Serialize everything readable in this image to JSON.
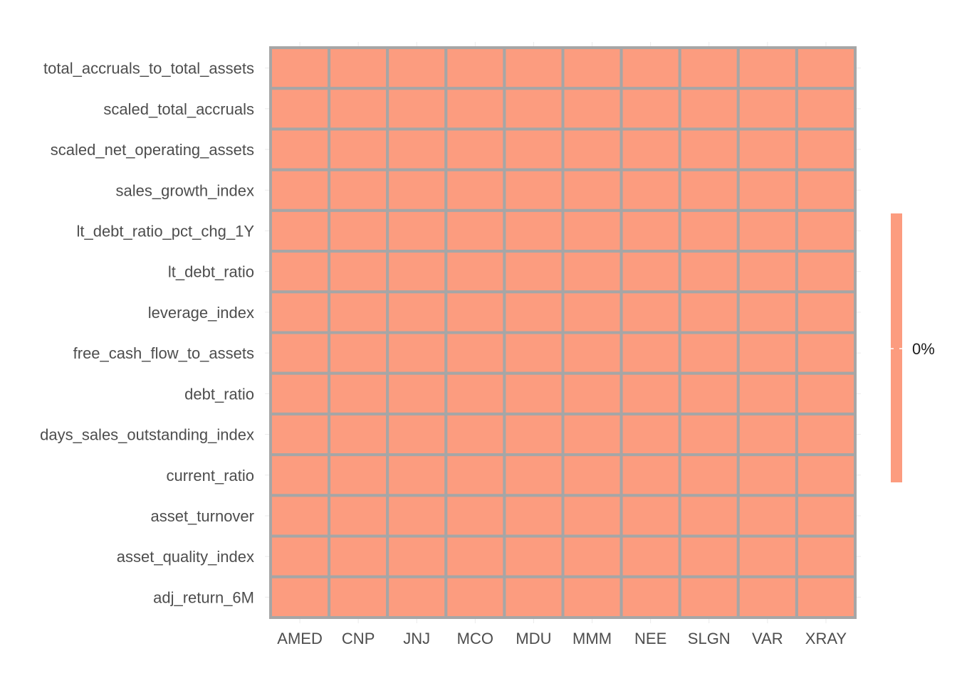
{
  "chart_data": {
    "type": "heatmap",
    "title": "",
    "xlabel": "",
    "ylabel": "",
    "x_categories": [
      "AMED",
      "CNP",
      "JNJ",
      "MCO",
      "MDU",
      "MMM",
      "NEE",
      "SLGN",
      "VAR",
      "XRAY"
    ],
    "y_categories": [
      "total_accruals_to_total_assets",
      "scaled_total_accruals",
      "scaled_net_operating_assets",
      "sales_growth_index",
      "lt_debt_ratio_pct_chg_1Y",
      "lt_debt_ratio",
      "leverage_index",
      "free_cash_flow_to_assets",
      "debt_ratio",
      "days_sales_outstanding_index",
      "current_ratio",
      "asset_turnover",
      "asset_quality_index",
      "adj_return_6M"
    ],
    "values": [
      [
        0,
        0,
        0,
        0,
        0,
        0,
        0,
        0,
        0,
        0
      ],
      [
        0,
        0,
        0,
        0,
        0,
        0,
        0,
        0,
        0,
        0
      ],
      [
        0,
        0,
        0,
        0,
        0,
        0,
        0,
        0,
        0,
        0
      ],
      [
        0,
        0,
        0,
        0,
        0,
        0,
        0,
        0,
        0,
        0
      ],
      [
        0,
        0,
        0,
        0,
        0,
        0,
        0,
        0,
        0,
        0
      ],
      [
        0,
        0,
        0,
        0,
        0,
        0,
        0,
        0,
        0,
        0
      ],
      [
        0,
        0,
        0,
        0,
        0,
        0,
        0,
        0,
        0,
        0
      ],
      [
        0,
        0,
        0,
        0,
        0,
        0,
        0,
        0,
        0,
        0
      ],
      [
        0,
        0,
        0,
        0,
        0,
        0,
        0,
        0,
        0,
        0
      ],
      [
        0,
        0,
        0,
        0,
        0,
        0,
        0,
        0,
        0,
        0
      ],
      [
        0,
        0,
        0,
        0,
        0,
        0,
        0,
        0,
        0,
        0
      ],
      [
        0,
        0,
        0,
        0,
        0,
        0,
        0,
        0,
        0,
        0
      ],
      [
        0,
        0,
        0,
        0,
        0,
        0,
        0,
        0,
        0,
        0
      ],
      [
        0,
        0,
        0,
        0,
        0,
        0,
        0,
        0,
        0,
        0
      ]
    ],
    "cell_color": "#fc9c7f",
    "cell_border_color": "#a6a6a6",
    "legend": {
      "position": "right",
      "labels": [
        "0%"
      ],
      "color": "#fc9c7f"
    }
  }
}
